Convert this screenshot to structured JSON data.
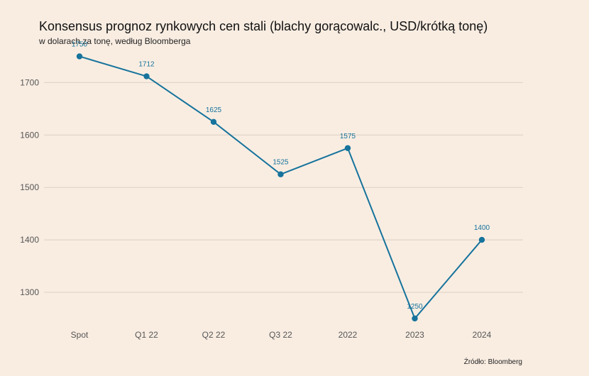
{
  "title": "Konsensus prognoz rynkowych cen stali (blachy gorącowalc., USD/krótką tonę)",
  "subtitle": "w dolarach za tonę, według Bloomberga",
  "source": "Źródło: Bloomberg",
  "colors": {
    "background": "#f9ede2",
    "line": "#16739c",
    "grid": "#dccfc3"
  },
  "chart_data": {
    "type": "line",
    "categories": [
      "Spot",
      "Q1 22",
      "Q2 22",
      "Q3 22",
      "2022",
      "2023",
      "2024"
    ],
    "series": [
      {
        "values": [
          1750,
          1712,
          1625,
          1525,
          1575,
          1250,
          1400
        ]
      }
    ],
    "data_labels": [
      "1750",
      "1712",
      "1625",
      "1525",
      "1575",
      "1250",
      "1400"
    ],
    "yticks": [
      1300,
      1400,
      1500,
      1600,
      1700
    ],
    "ylim": [
      1235,
      1775
    ],
    "grid": true,
    "legend": "none"
  }
}
